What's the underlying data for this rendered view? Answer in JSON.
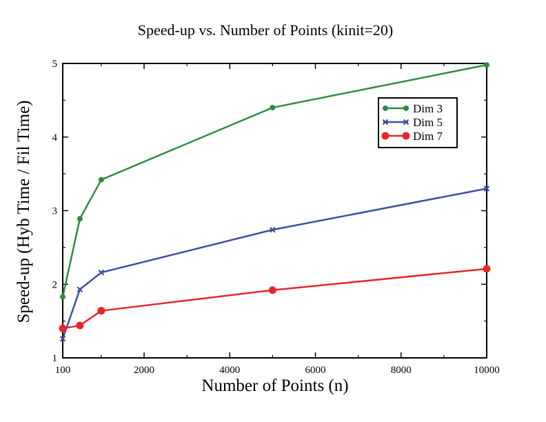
{
  "chart_data": {
    "type": "line",
    "title": "Speed-up vs. Number of Points (kinit=20)",
    "xlabel": "Number of Points (n)",
    "ylabel": "Speed-up (Hyb Time / Fil Time)",
    "xlim": [
      100,
      10000
    ],
    "ylim": [
      1,
      5
    ],
    "x_ticks": [
      100,
      2000,
      4000,
      6000,
      8000,
      10000
    ],
    "y_ticks": [
      1,
      2,
      3,
      4,
      5
    ],
    "grid": false,
    "legend_position": "top-right",
    "series": [
      {
        "name": "Dim 3",
        "color": "#2e8b3e",
        "marker": "circle-small",
        "x": [
          100,
          500,
          1000,
          5000,
          10000
        ],
        "y": [
          1.83,
          2.89,
          3.42,
          4.4,
          4.98
        ]
      },
      {
        "name": "Dim 5",
        "color": "#3b4fa0",
        "marker": "x",
        "x": [
          100,
          500,
          1000,
          5000,
          10000
        ],
        "y": [
          1.26,
          1.93,
          2.16,
          2.74,
          3.3
        ]
      },
      {
        "name": "Dim 7",
        "color": "#e8262a",
        "marker": "circle-large",
        "x": [
          100,
          500,
          1000,
          5000,
          10000
        ],
        "y": [
          1.4,
          1.44,
          1.64,
          1.92,
          2.21
        ]
      }
    ]
  }
}
